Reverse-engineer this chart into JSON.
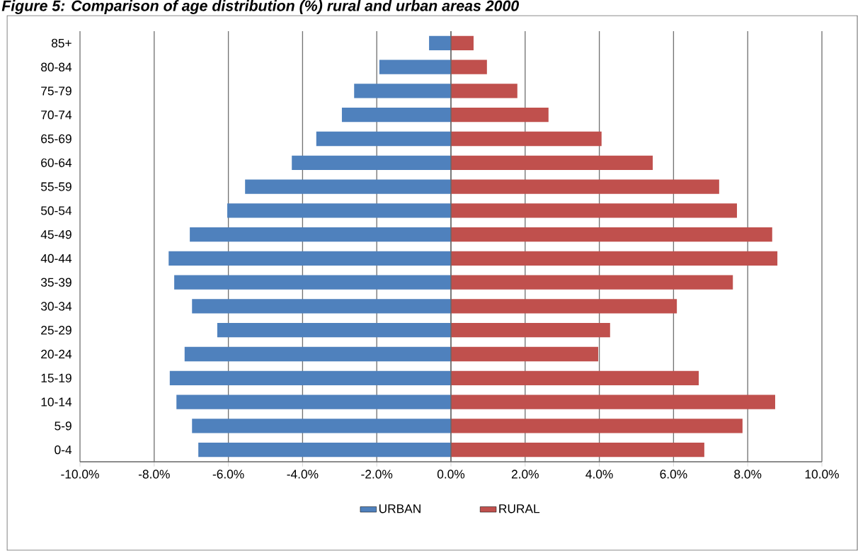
{
  "chart_data": {
    "type": "bar",
    "orientation": "horizontal",
    "stacked": true,
    "title": "Figure 5: Comparison of age distribution (%) rural and urban areas 2000",
    "categories": [
      "85+",
      "80-84",
      "75-79",
      "70-74",
      "65-69",
      "60-64",
      "55-59",
      "50-54",
      "45-49",
      "40-44",
      "35-39",
      "30-34",
      "25-29",
      "20-24",
      "15-19",
      "10-14",
      "5-9",
      "0-4"
    ],
    "series": [
      {
        "name": "URBAN",
        "color": "#4f81bd",
        "values": [
          -0.59,
          -1.93,
          -2.61,
          -2.94,
          -3.63,
          -4.29,
          -5.55,
          -6.03,
          -7.04,
          -7.61,
          -7.46,
          -6.98,
          -6.3,
          -7.18,
          -7.58,
          -7.4,
          -6.98,
          -6.81
        ]
      },
      {
        "name": "RURAL",
        "color": "#c0504d",
        "values": [
          0.61,
          0.97,
          1.79,
          2.63,
          4.06,
          5.44,
          7.23,
          7.71,
          8.66,
          8.8,
          7.6,
          6.09,
          4.29,
          3.97,
          6.68,
          8.74,
          7.86,
          6.83
        ]
      }
    ],
    "xlim": [
      -10,
      10
    ],
    "xticks": [
      {
        "value": -10,
        "label": "-10.0%"
      },
      {
        "value": -8,
        "label": "-8.0%"
      },
      {
        "value": -6,
        "label": "-6.0%"
      },
      {
        "value": -4,
        "label": "-4.0%"
      },
      {
        "value": -2,
        "label": "-2.0%"
      },
      {
        "value": 0,
        "label": "0.0%"
      },
      {
        "value": 2,
        "label": "2.0%"
      },
      {
        "value": 4,
        "label": "4.0%"
      },
      {
        "value": 6,
        "label": "6.0%"
      },
      {
        "value": 8,
        "label": "8.0%"
      },
      {
        "value": 10,
        "label": "10.0%"
      }
    ],
    "grid": "x",
    "legend": "bottom"
  }
}
